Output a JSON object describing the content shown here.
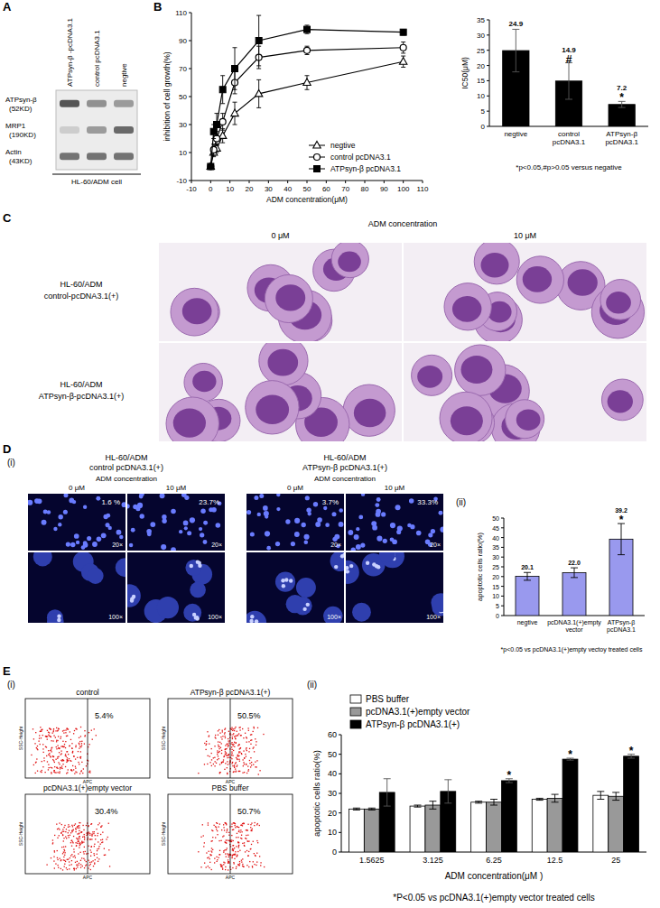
{
  "panel_labels": [
    "A",
    "B",
    "C",
    "D",
    "E"
  ],
  "blot": {
    "columns": [
      "ATPsyn-β -pcDNA3.1",
      "control pcDNA3.1",
      "negtive"
    ],
    "rows": [
      {
        "name": "ATPsyn-β",
        "size": "(52KD)"
      },
      {
        "name": "MRP1",
        "size": "(190KD)"
      },
      {
        "name": "Actin",
        "size": "(43KD)"
      }
    ],
    "caption": "HL-60/ADM cell"
  },
  "micrographs": {
    "title": "ADM concentration",
    "columns": [
      "0 μM",
      "10 μM"
    ],
    "rows": [
      [
        "HL-60/ADM",
        "control-pcDNA3.1(+)"
      ],
      [
        "HL-60/ADM",
        "ATPsyn-β-pcDNA3.1(+)"
      ]
    ]
  },
  "fluorescence": {
    "label": "(i)",
    "magnifications": [
      "20×",
      "100×"
    ],
    "groups": [
      {
        "title": [
          "HL-60/ADM",
          "control pcDNA3.1(+)"
        ],
        "subtitle": "ADM concentration",
        "columns": [
          "0 μM",
          "10 μM"
        ],
        "percents": [
          "1.6 %",
          "23.7%"
        ]
      },
      {
        "title": [
          "HL-60/ADM",
          "ATPsyn-β pcDNA3.1(+)"
        ],
        "subtitle": "ADM concentration",
        "columns": [
          "0 μM",
          "10 μM"
        ],
        "percents": [
          "3.7%",
          "33.3%"
        ]
      }
    ]
  },
  "panel_d_chart_label": "(ii)",
  "flow": {
    "label": "(i)",
    "axis_labels": [
      "SSC-Height",
      "APC"
    ],
    "plots": [
      {
        "name": "control",
        "percent": "5.4%"
      },
      {
        "name": "ATPsyn-β pcDNA3.1(+)",
        "percent": "50.5%"
      },
      {
        "name": "pcDNA3.1(+)empty vector",
        "percent": "30.4%"
      },
      {
        "name": "PBS buffer",
        "percent": "50.7%"
      }
    ]
  },
  "panel_e_chart_label": "(ii)",
  "chart_data": [
    {
      "type": "line",
      "xlabel": "ADM concentration(μM)",
      "ylabel": "inhibition of cell growth(%)",
      "x": [
        0,
        1.5625,
        3.125,
        6.25,
        12.5,
        25,
        50,
        100
      ],
      "xlim": [
        -10,
        110
      ],
      "xticks": [
        -10,
        0,
        10,
        20,
        30,
        40,
        50,
        60,
        70,
        80,
        90,
        100,
        110
      ],
      "ylim": [
        -10,
        110
      ],
      "yticks": [
        -10,
        10,
        30,
        50,
        70,
        90,
        110
      ],
      "legend": "bottom-right",
      "series": [
        {
          "name": "negtive",
          "color": "#000000",
          "marker": "triangle-open",
          "values": [
            0,
            10,
            13,
            22,
            38,
            52,
            60,
            75
          ],
          "errors": [
            0,
            3,
            3,
            5,
            8,
            10,
            5,
            4
          ]
        },
        {
          "name": "control pcDNA3.1",
          "color": "#000000",
          "marker": "circle-open",
          "values": [
            0,
            12,
            20,
            32,
            60,
            78,
            83,
            85
          ],
          "errors": [
            0,
            4,
            5,
            6,
            8,
            8,
            3,
            4
          ]
        },
        {
          "name": "ATPsyn-β pcDNA3.1",
          "color": "#000000",
          "marker": "square",
          "values": [
            0,
            25,
            30,
            55,
            70,
            90,
            98,
            96
          ],
          "errors": [
            0,
            5,
            8,
            10,
            15,
            18,
            3,
            2
          ]
        }
      ]
    },
    {
      "type": "bar",
      "ylabel": "IC50(μM)",
      "categories": [
        "negtive",
        "control pcDNA3.1",
        "ATPsyn-β pcDNA3.1"
      ],
      "values": [
        24.9,
        14.9,
        7.2
      ],
      "errors": [
        7,
        6,
        1
      ],
      "significance": [
        null,
        "#",
        "*"
      ],
      "color": "#000000",
      "ylim": [
        0,
        35
      ],
      "yticks": [
        0,
        5,
        10,
        15,
        20,
        25,
        30,
        35
      ],
      "data_labels": true,
      "note": "*p<0.05,#p>0.05 versus negative"
    },
    {
      "type": "bar",
      "ylabel": "apoptotic cells ratio(%)",
      "categories": [
        "negtive",
        "pcDNA3.1(+)empty vector",
        "ATPsyn-β pcDNA3.1"
      ],
      "values": [
        20.1,
        22.0,
        39.2
      ],
      "value_labels": [
        "20.1",
        "22.0",
        "39.2"
      ],
      "errors": [
        2,
        2.5,
        8
      ],
      "significance": [
        null,
        null,
        "*"
      ],
      "color": "#9999ee",
      "ylim": [
        0,
        50
      ],
      "yticks": [
        0,
        5,
        10,
        15,
        20,
        25,
        30,
        35,
        40,
        45,
        50
      ],
      "data_labels": true,
      "note": "*p<0.05 vs pcDNA3.1(+)empty vectoy treated cells"
    },
    {
      "type": "bar",
      "xlabel": "ADM concentration(μM )",
      "ylabel": "apoptotic cells ratio(%)",
      "categories": [
        "1.5625",
        "3.125",
        "6.25",
        "12.5",
        "25"
      ],
      "ylim": [
        0,
        60
      ],
      "yticks": [
        0,
        10,
        20,
        30,
        40,
        50,
        60
      ],
      "legend": "top-left",
      "series": [
        {
          "name": "PBS buffer",
          "color": "#ffffff",
          "values": [
            22,
            23.5,
            25.5,
            27,
            29
          ],
          "errors": [
            0.5,
            0.5,
            0.5,
            0.5,
            2
          ]
        },
        {
          "name": "pcDNA3.1(+)empty vector",
          "color": "#999999",
          "values": [
            22,
            24,
            25.5,
            27.5,
            28.5
          ],
          "errors": [
            0.5,
            2,
            1.5,
            2,
            2
          ]
        },
        {
          "name": "ATPsyn-β pcDNA3.1(+)",
          "color": "#000000",
          "values": [
            30.5,
            31,
            36.5,
            47.5,
            49
          ],
          "errors": [
            7,
            6,
            1,
            0.5,
            1
          ],
          "significance": [
            null,
            null,
            "*",
            "*",
            "*"
          ]
        }
      ],
      "note": "*P<0.05 vs pcDNA3.1(+)empty vector treated cells"
    }
  ]
}
